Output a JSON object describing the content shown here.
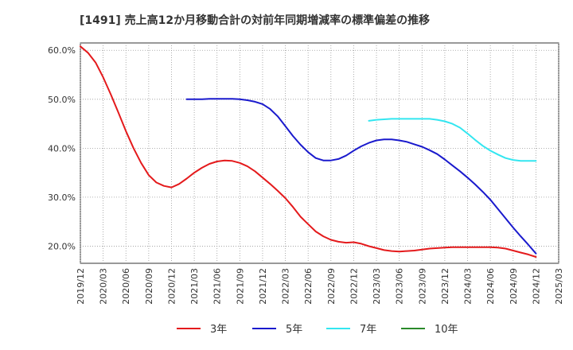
{
  "chart_data": {
    "type": "line",
    "title": "[1491]  売上高12か月移動合計の対前年同期増減率の標準偏差の推移",
    "xlabel": "",
    "ylabel": "",
    "ylim": [
      16.5,
      61.5
    ],
    "yticks": [
      20,
      30,
      40,
      50,
      60
    ],
    "ytick_labels": [
      "20.0%",
      "30.0%",
      "40.0%",
      "50.0%",
      "60.0%"
    ],
    "xlim": [
      "2019/12",
      "2025/03"
    ],
    "xtick_labels": [
      "2019/12",
      "2020/03",
      "2020/06",
      "2020/09",
      "2020/12",
      "2021/03",
      "2021/06",
      "2021/09",
      "2021/12",
      "2022/03",
      "2022/06",
      "2022/09",
      "2022/12",
      "2023/03",
      "2023/06",
      "2023/09",
      "2023/12",
      "2024/03",
      "2024/06",
      "2024/09",
      "2024/12",
      "2025/03"
    ],
    "grid": true,
    "legend_position": "bottom",
    "series": [
      {
        "name": "3年",
        "color": "#e41a1c",
        "points": [
          [
            "2019/12",
            60.8
          ],
          [
            "2020/01",
            59.5
          ],
          [
            "2020/02",
            57.5
          ],
          [
            "2020/03",
            54.5
          ],
          [
            "2020/04",
            51.0
          ],
          [
            "2020/05",
            47.3
          ],
          [
            "2020/06",
            43.5
          ],
          [
            "2020/07",
            40.0
          ],
          [
            "2020/08",
            37.0
          ],
          [
            "2020/09",
            34.5
          ],
          [
            "2020/10",
            33.0
          ],
          [
            "2020/11",
            32.3
          ],
          [
            "2020/12",
            32.0
          ],
          [
            "2021/01",
            32.7
          ],
          [
            "2021/02",
            33.8
          ],
          [
            "2021/03",
            35.0
          ],
          [
            "2021/04",
            36.0
          ],
          [
            "2021/05",
            36.8
          ],
          [
            "2021/06",
            37.3
          ],
          [
            "2021/07",
            37.5
          ],
          [
            "2021/08",
            37.4
          ],
          [
            "2021/09",
            37.0
          ],
          [
            "2021/10",
            36.3
          ],
          [
            "2021/11",
            35.3
          ],
          [
            "2021/12",
            34.0
          ],
          [
            "2022/01",
            32.7
          ],
          [
            "2022/02",
            31.3
          ],
          [
            "2022/03",
            29.8
          ],
          [
            "2022/04",
            28.0
          ],
          [
            "2022/05",
            26.0
          ],
          [
            "2022/06",
            24.5
          ],
          [
            "2022/07",
            23.0
          ],
          [
            "2022/08",
            22.0
          ],
          [
            "2022/09",
            21.3
          ],
          [
            "2022/10",
            20.9
          ],
          [
            "2022/11",
            20.7
          ],
          [
            "2022/12",
            20.8
          ],
          [
            "2023/01",
            20.5
          ],
          [
            "2023/02",
            20.0
          ],
          [
            "2023/03",
            19.6
          ],
          [
            "2023/04",
            19.2
          ],
          [
            "2023/05",
            19.0
          ],
          [
            "2023/06",
            18.9
          ],
          [
            "2023/07",
            19.0
          ],
          [
            "2023/08",
            19.1
          ],
          [
            "2023/09",
            19.3
          ],
          [
            "2023/10",
            19.5
          ],
          [
            "2023/11",
            19.6
          ],
          [
            "2023/12",
            19.7
          ],
          [
            "2024/01",
            19.8
          ],
          [
            "2024/02",
            19.8
          ],
          [
            "2024/03",
            19.8
          ],
          [
            "2024/04",
            19.8
          ],
          [
            "2024/05",
            19.8
          ],
          [
            "2024/06",
            19.8
          ],
          [
            "2024/07",
            19.7
          ],
          [
            "2024/08",
            19.5
          ],
          [
            "2024/09",
            19.1
          ],
          [
            "2024/10",
            18.7
          ],
          [
            "2024/11",
            18.3
          ],
          [
            "2024/12",
            17.8
          ]
        ]
      },
      {
        "name": "5年",
        "color": "#1a1acd",
        "points": [
          [
            "2021/02",
            50.0
          ],
          [
            "2021/03",
            50.0
          ],
          [
            "2021/04",
            50.0
          ],
          [
            "2021/05",
            50.1
          ],
          [
            "2021/06",
            50.1
          ],
          [
            "2021/07",
            50.1
          ],
          [
            "2021/08",
            50.1
          ],
          [
            "2021/09",
            50.0
          ],
          [
            "2021/10",
            49.8
          ],
          [
            "2021/11",
            49.5
          ],
          [
            "2021/12",
            49.0
          ],
          [
            "2022/01",
            48.0
          ],
          [
            "2022/02",
            46.5
          ],
          [
            "2022/03",
            44.5
          ],
          [
            "2022/04",
            42.5
          ],
          [
            "2022/05",
            40.7
          ],
          [
            "2022/06",
            39.2
          ],
          [
            "2022/07",
            38.0
          ],
          [
            "2022/08",
            37.5
          ],
          [
            "2022/09",
            37.5
          ],
          [
            "2022/10",
            37.8
          ],
          [
            "2022/11",
            38.5
          ],
          [
            "2022/12",
            39.5
          ],
          [
            "2023/01",
            40.4
          ],
          [
            "2023/02",
            41.1
          ],
          [
            "2023/03",
            41.6
          ],
          [
            "2023/04",
            41.8
          ],
          [
            "2023/05",
            41.8
          ],
          [
            "2023/06",
            41.6
          ],
          [
            "2023/07",
            41.3
          ],
          [
            "2023/08",
            40.8
          ],
          [
            "2023/09",
            40.3
          ],
          [
            "2023/10",
            39.6
          ],
          [
            "2023/11",
            38.8
          ],
          [
            "2023/12",
            37.7
          ],
          [
            "2024/01",
            36.5
          ],
          [
            "2024/02",
            35.3
          ],
          [
            "2024/03",
            34.0
          ],
          [
            "2024/04",
            32.6
          ],
          [
            "2024/05",
            31.1
          ],
          [
            "2024/06",
            29.5
          ],
          [
            "2024/07",
            27.6
          ],
          [
            "2024/08",
            25.7
          ],
          [
            "2024/09",
            23.8
          ],
          [
            "2024/10",
            22.0
          ],
          [
            "2024/11",
            20.3
          ],
          [
            "2024/12",
            18.5
          ]
        ]
      },
      {
        "name": "7年",
        "color": "#33e6f0",
        "points": [
          [
            "2023/02",
            45.6
          ],
          [
            "2023/03",
            45.8
          ],
          [
            "2023/04",
            45.9
          ],
          [
            "2023/05",
            46.0
          ],
          [
            "2023/06",
            46.0
          ],
          [
            "2023/07",
            46.0
          ],
          [
            "2023/08",
            46.0
          ],
          [
            "2023/09",
            46.0
          ],
          [
            "2023/10",
            46.0
          ],
          [
            "2023/11",
            45.8
          ],
          [
            "2023/12",
            45.5
          ],
          [
            "2024/01",
            45.0
          ],
          [
            "2024/02",
            44.2
          ],
          [
            "2024/03",
            43.0
          ],
          [
            "2024/04",
            41.7
          ],
          [
            "2024/05",
            40.5
          ],
          [
            "2024/06",
            39.5
          ],
          [
            "2024/07",
            38.7
          ],
          [
            "2024/08",
            38.0
          ],
          [
            "2024/09",
            37.6
          ],
          [
            "2024/10",
            37.4
          ],
          [
            "2024/11",
            37.4
          ],
          [
            "2024/12",
            37.4
          ]
        ]
      },
      {
        "name": "10年",
        "color": "#2a8a2a",
        "points": []
      }
    ]
  }
}
